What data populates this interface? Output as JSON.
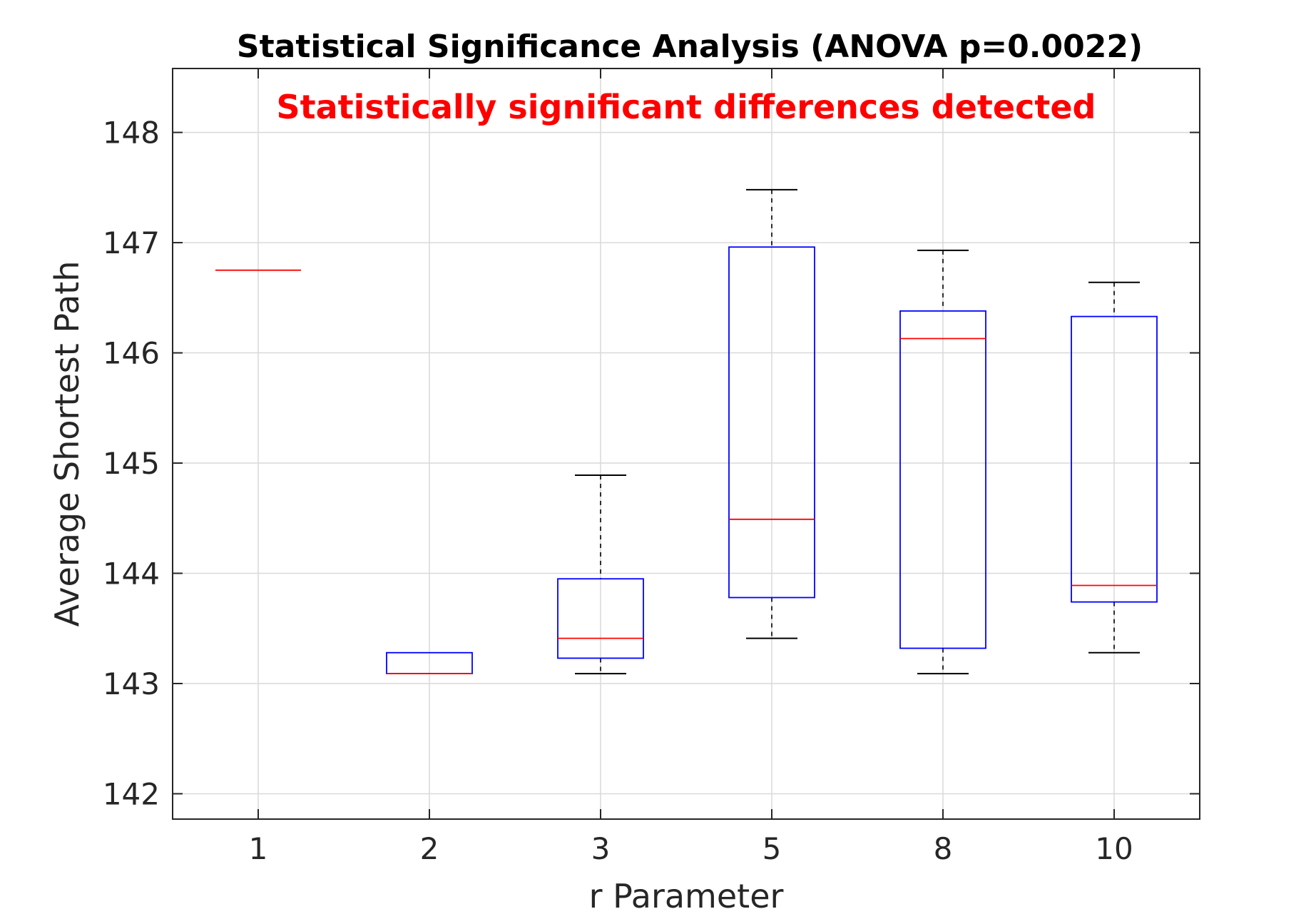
{
  "chart_data": {
    "type": "boxplot",
    "title": "Statistical Significance Analysis (ANOVA p=0.0022)",
    "annotation": "Statistically significant differences detected",
    "xlabel": "r Parameter",
    "ylabel": "Average Shortest Path",
    "categories": [
      "1",
      "2",
      "3",
      "5",
      "8",
      "10"
    ],
    "y_ticks": [
      "142",
      "143",
      "144",
      "145",
      "146",
      "147",
      "148"
    ],
    "ylim": [
      141.77,
      148.58
    ],
    "grid": true,
    "boxes": [
      {
        "category": "1",
        "whisker_low": 146.75,
        "q1": 146.75,
        "median": 146.75,
        "q3": 146.75,
        "whisker_high": 146.75
      },
      {
        "category": "2",
        "whisker_low": 143.09,
        "q1": 143.09,
        "median": 143.09,
        "q3": 143.28,
        "whisker_high": 143.28
      },
      {
        "category": "3",
        "whisker_low": 143.09,
        "q1": 143.23,
        "median": 143.41,
        "q3": 143.95,
        "whisker_high": 144.89
      },
      {
        "category": "5",
        "whisker_low": 143.41,
        "q1": 143.78,
        "median": 144.49,
        "q3": 146.96,
        "whisker_high": 147.48
      },
      {
        "category": "8",
        "whisker_low": 143.09,
        "q1": 143.32,
        "median": 146.13,
        "q3": 146.38,
        "whisker_high": 146.93
      },
      {
        "category": "10",
        "whisker_low": 143.28,
        "q1": 143.74,
        "median": 143.89,
        "q3": 146.33,
        "whisker_high": 146.64
      }
    ]
  },
  "colors": {
    "box": "#0000ff",
    "median": "#ff0000",
    "whisker": "#000000",
    "annotation": "#ff0000",
    "grid": "#d9d9d9",
    "axes": "#262626"
  }
}
